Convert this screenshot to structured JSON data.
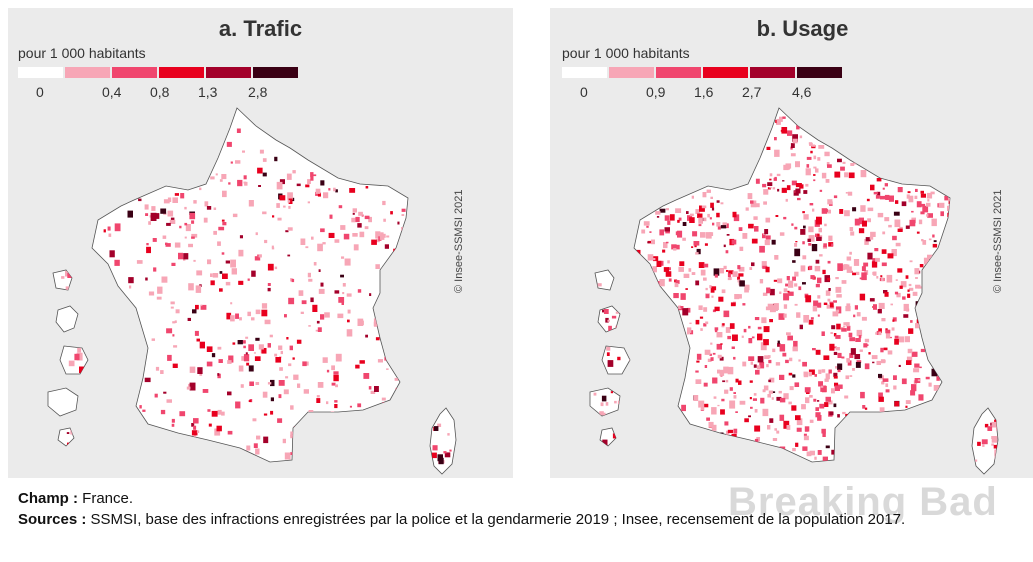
{
  "panels": [
    {
      "title": "a. Trafic",
      "unit": "pour 1 000 habitants",
      "legend_ticks": [
        "0",
        "0,4",
        "0,8",
        "1,3",
        "2,8"
      ],
      "credit": "© Insee-SSMSI 2021",
      "density": 0.3
    },
    {
      "title": "b. Usage",
      "unit": "pour 1 000 habitants",
      "legend_ticks": [
        "0",
        "0,9",
        "1,6",
        "2,7",
        "4,6"
      ],
      "credit": "© Insee-SSMSI 2021",
      "density": 0.62
    }
  ],
  "legend_colors": [
    "#ffffff",
    "#f7a6b6",
    "#f0466e",
    "#e8001e",
    "#a3002a",
    "#3a0014"
  ],
  "footer": {
    "champ_label": "Champ :",
    "champ_text": "France.",
    "sources_label": "Sources :",
    "sources_text": "SSMSI, base des infractions enregistrées par la police et la gendarmerie 2019 ; Insee, recensement de la population 2017."
  },
  "watermark": "Breaking Bad"
}
